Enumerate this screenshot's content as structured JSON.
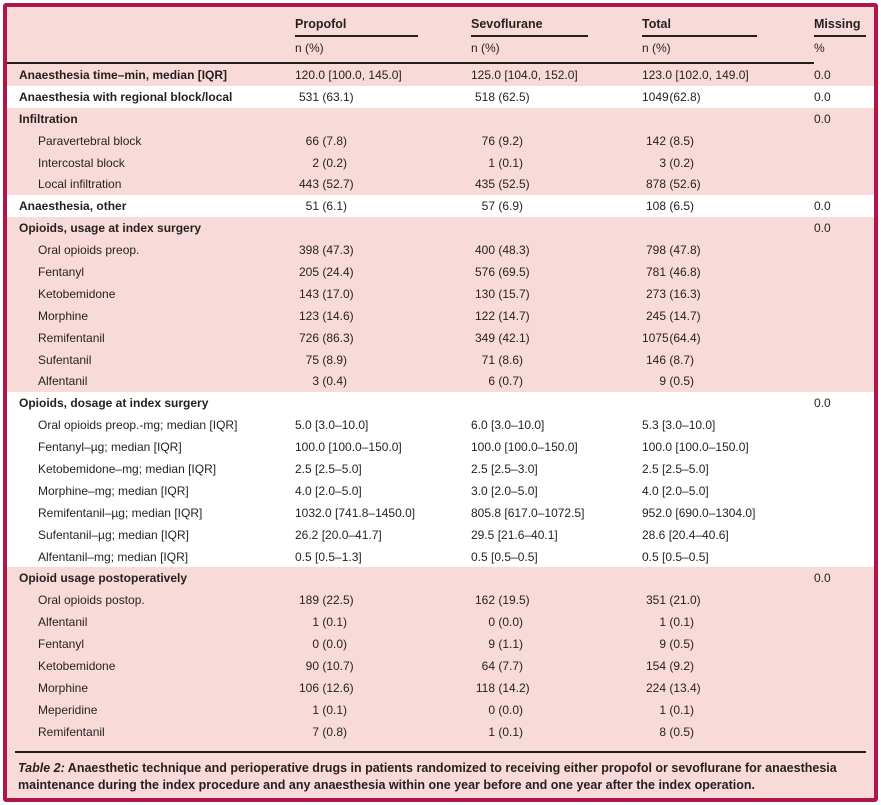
{
  "colors": {
    "frame_border": "#b0164a",
    "page_background": "#f8dbd9",
    "alt_row_background": "#ffffff",
    "rule_color": "#231f20",
    "text_color": "#231f20"
  },
  "table": {
    "columns": [
      "Propofol",
      "Sevoflurane",
      "Total",
      "Missing"
    ],
    "subheaders": [
      "n (%)",
      "n (%)",
      "n (%)",
      "%"
    ],
    "rows": [
      {
        "label": "Anaesthesia time–min, median [IQR]",
        "bold": true,
        "indent": false,
        "bg": "pink",
        "values": [
          "120.0 [100.0, 145.0]",
          "125.0 [104.0, 152.0]",
          "123.0 [102.0, 149.0]"
        ],
        "missing": "0.0"
      },
      {
        "label": "Anaesthesia with regional block/local",
        "bold": true,
        "indent": false,
        "bg": "white",
        "values": [
          "531 (63.1)",
          "518 (62.5)",
          "1049 (62.8)"
        ],
        "missing": "0.0"
      },
      {
        "label": "Infiltration",
        "bold": true,
        "indent": false,
        "bg": "pink",
        "values": [
          "",
          "",
          ""
        ],
        "missing": "0.0"
      },
      {
        "label": "Paravertebral block",
        "bold": false,
        "indent": true,
        "bg": "pink",
        "values": [
          "66 (7.8)",
          "76 (9.2)",
          "142 (8.5)"
        ],
        "missing": ""
      },
      {
        "label": "Intercostal block",
        "bold": false,
        "indent": true,
        "bg": "pink",
        "values": [
          "2 (0.2)",
          "1 (0.1)",
          "3 (0.2)"
        ],
        "missing": ""
      },
      {
        "label": "Local infiltration",
        "bold": false,
        "indent": true,
        "bg": "pink",
        "values": [
          "443 (52.7)",
          "435 (52.5)",
          "878 (52.6)"
        ],
        "missing": ""
      },
      {
        "label": "Anaesthesia, other",
        "bold": true,
        "indent": false,
        "bg": "white",
        "values": [
          "51 (6.1)",
          "57 (6.9)",
          "108 (6.5)"
        ],
        "missing": "0.0"
      },
      {
        "label": "Opioids, usage at index surgery",
        "bold": true,
        "indent": false,
        "bg": "pink",
        "values": [
          "",
          "",
          ""
        ],
        "missing": "0.0"
      },
      {
        "label": "Oral opioids preop.",
        "bold": false,
        "indent": true,
        "bg": "pink",
        "values": [
          "398 (47.3)",
          "400 (48.3)",
          "798 (47.8)"
        ],
        "missing": ""
      },
      {
        "label": "Fentanyl",
        "bold": false,
        "indent": true,
        "bg": "pink",
        "values": [
          "205 (24.4)",
          "576 (69.5)",
          "781 (46.8)"
        ],
        "missing": ""
      },
      {
        "label": "Ketobemidone",
        "bold": false,
        "indent": true,
        "bg": "pink",
        "values": [
          "143 (17.0)",
          "130 (15.7)",
          "273 (16.3)"
        ],
        "missing": ""
      },
      {
        "label": "Morphine",
        "bold": false,
        "indent": true,
        "bg": "pink",
        "values": [
          "123 (14.6)",
          "122 (14.7)",
          "245 (14.7)"
        ],
        "missing": ""
      },
      {
        "label": "Remifentanil",
        "bold": false,
        "indent": true,
        "bg": "pink",
        "values": [
          "726 (86.3)",
          "349 (42.1)",
          "1075 (64.4)"
        ],
        "missing": ""
      },
      {
        "label": "Sufentanil",
        "bold": false,
        "indent": true,
        "bg": "pink",
        "values": [
          "75 (8.9)",
          "71 (8.6)",
          "146 (8.7)"
        ],
        "missing": ""
      },
      {
        "label": "Alfentanil",
        "bold": false,
        "indent": true,
        "bg": "pink",
        "values": [
          "3 (0.4)",
          "6 (0.7)",
          "9 (0.5)"
        ],
        "missing": ""
      },
      {
        "label": "Opioids, dosage at index surgery",
        "bold": true,
        "indent": false,
        "bg": "white",
        "values": [
          "",
          "",
          ""
        ],
        "missing": "0.0"
      },
      {
        "label": "Oral opioids preop.-mg; median [IQR]",
        "bold": false,
        "indent": true,
        "bg": "white",
        "values": [
          "5.0 [3.0–10.0]",
          "6.0 [3.0–10.0]",
          "5.3 [3.0–10.0]"
        ],
        "missing": ""
      },
      {
        "label": "Fentanyl–µg; median [IQR]",
        "bold": false,
        "indent": true,
        "bg": "white",
        "values": [
          "100.0 [100.0–150.0]",
          "100.0 [100.0–150.0]",
          "100.0 [100.0–150.0]"
        ],
        "missing": ""
      },
      {
        "label": "Ketobemidone–mg; median [IQR]",
        "bold": false,
        "indent": true,
        "bg": "white",
        "values": [
          "2.5 [2.5–5.0]",
          "2.5 [2.5–3.0]",
          "2.5 [2.5–5.0]"
        ],
        "missing": ""
      },
      {
        "label": "Morphine–mg; median [IQR]",
        "bold": false,
        "indent": true,
        "bg": "white",
        "values": [
          "4.0 [2.0–5.0]",
          "3.0 [2.0–5.0]",
          "4.0 [2.0–5.0]"
        ],
        "missing": ""
      },
      {
        "label": "Remifentanil–µg; median [IQR]",
        "bold": false,
        "indent": true,
        "bg": "white",
        "values": [
          "1032.0 [741.8–1450.0]",
          "805.8 [617.0–1072.5]",
          "952.0 [690.0–1304.0]"
        ],
        "missing": ""
      },
      {
        "label": "Sufentanil–µg; median [IQR]",
        "bold": false,
        "indent": true,
        "bg": "white",
        "values": [
          "26.2 [20.0–41.7]",
          "29.5 [21.6–40.1]",
          "28.6 [20.4–40.6]"
        ],
        "missing": ""
      },
      {
        "label": "Alfentanil–mg; median [IQR]",
        "bold": false,
        "indent": true,
        "bg": "white",
        "values": [
          "0.5 [0.5–1.3]",
          "0.5 [0.5–0.5]",
          "0.5 [0.5–0.5]"
        ],
        "missing": ""
      },
      {
        "label": "Opioid usage postoperatively",
        "bold": true,
        "indent": false,
        "bg": "pink",
        "values": [
          "",
          "",
          ""
        ],
        "missing": "0.0"
      },
      {
        "label": "Oral opioids postop.",
        "bold": false,
        "indent": true,
        "bg": "pink",
        "values": [
          "189 (22.5)",
          "162 (19.5)",
          "351 (21.0)"
        ],
        "missing": ""
      },
      {
        "label": "Alfentanil",
        "bold": false,
        "indent": true,
        "bg": "pink",
        "values": [
          "1 (0.1)",
          "0 (0.0)",
          "1 (0.1)"
        ],
        "missing": ""
      },
      {
        "label": "Fentanyl",
        "bold": false,
        "indent": true,
        "bg": "pink",
        "values": [
          "0 (0.0)",
          "9 (1.1)",
          "9 (0.5)"
        ],
        "missing": ""
      },
      {
        "label": "Ketobemidone",
        "bold": false,
        "indent": true,
        "bg": "pink",
        "values": [
          "90 (10.7)",
          "64 (7.7)",
          "154 (9.2)"
        ],
        "missing": ""
      },
      {
        "label": "Morphine",
        "bold": false,
        "indent": true,
        "bg": "pink",
        "values": [
          "106 (12.6)",
          "118 (14.2)",
          "224 (13.4)"
        ],
        "missing": ""
      },
      {
        "label": "Meperidine",
        "bold": false,
        "indent": true,
        "bg": "pink",
        "values": [
          "1 (0.1)",
          "0 (0.0)",
          "1 (0.1)"
        ],
        "missing": ""
      },
      {
        "label": "Remifentanil",
        "bold": false,
        "indent": true,
        "bg": "pink",
        "values": [
          "7 (0.8)",
          "1 (0.1)",
          "8 (0.5)"
        ],
        "missing": ""
      }
    ],
    "caption_label": "Table 2:",
    "caption_text": "Anaesthetic technique and perioperative drugs in patients randomized to receiving either propofol or sevoflurane for anaesthesia maintenance during the index procedure and any anaesthesia within one year before and one year after the index operation."
  }
}
